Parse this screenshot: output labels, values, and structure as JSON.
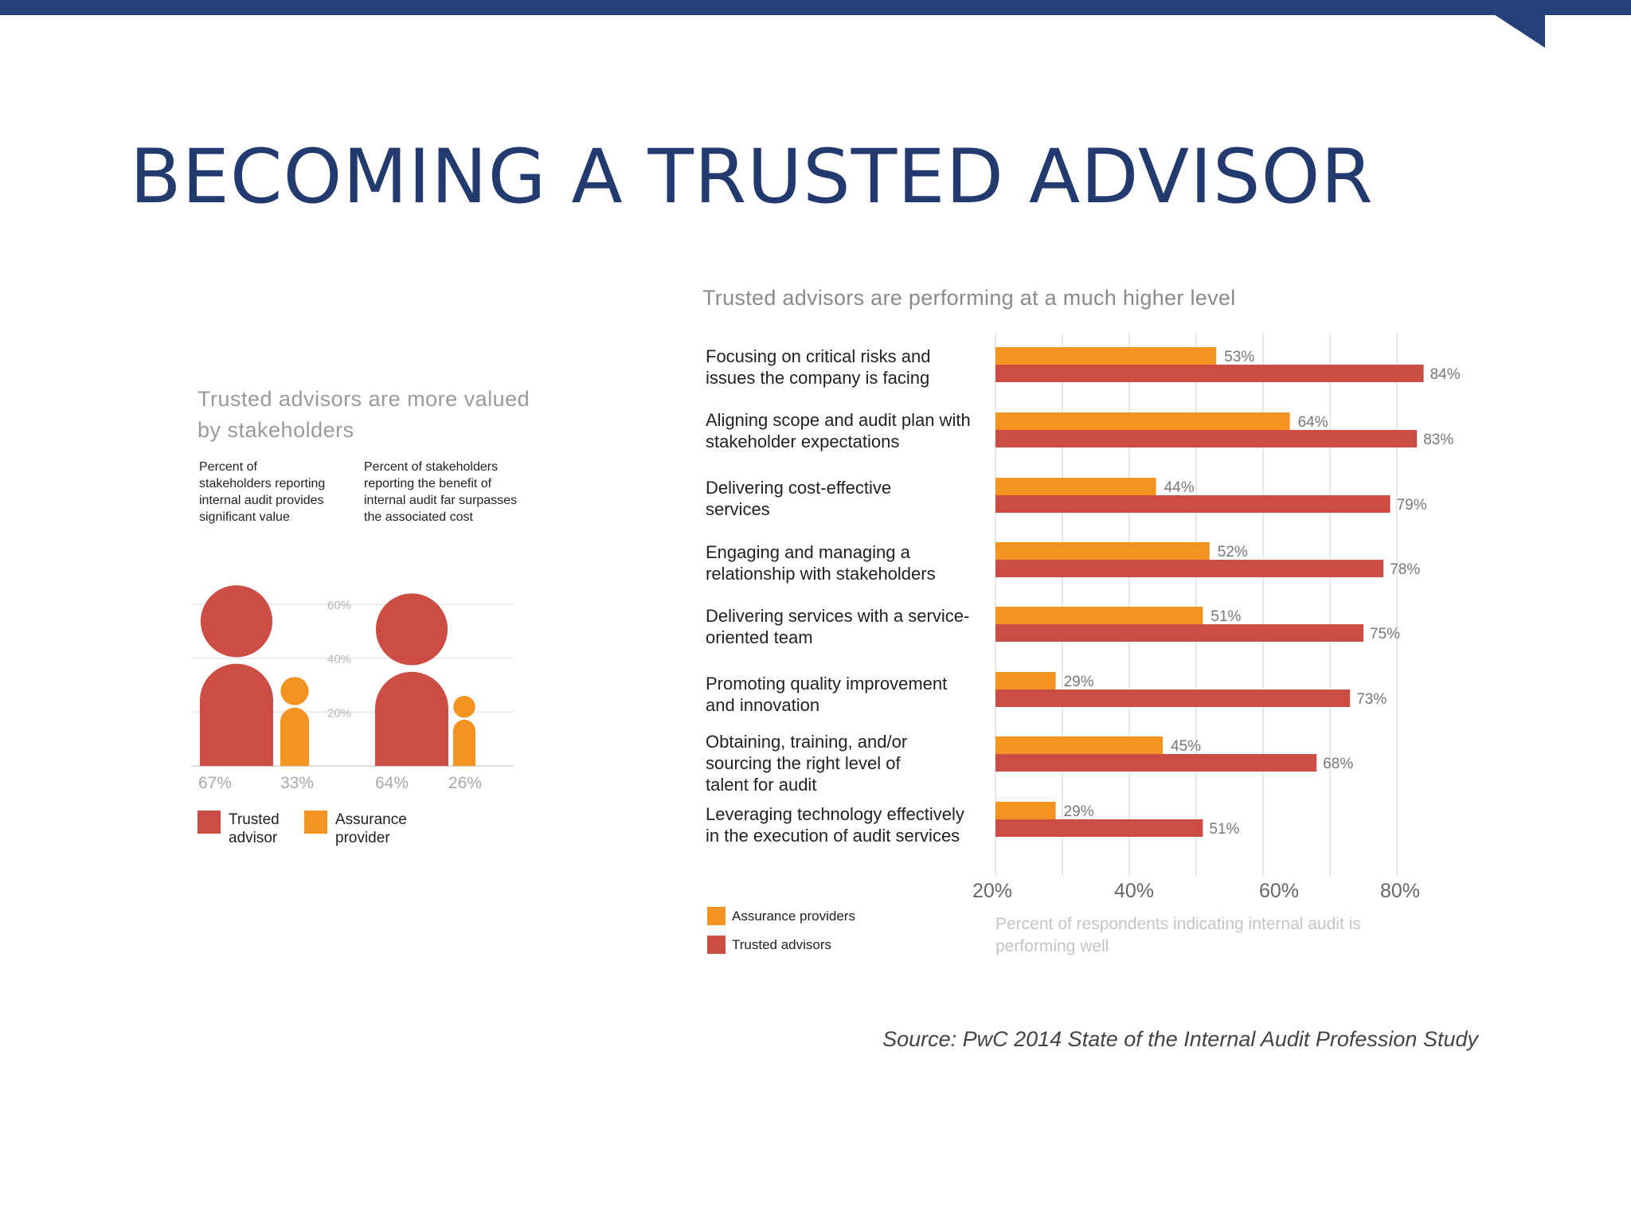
{
  "slide": {
    "title": "BECOMING A TRUSTED ADVISOR",
    "source": "Source: PwC 2014 State of the Internal Audit Profession Study"
  },
  "colors": {
    "header_bar": "#243f7a",
    "title": "#223a6e",
    "trusted": "#cc4d43",
    "assurance": "#f39321"
  },
  "chart_data": [
    {
      "type": "bar",
      "title": "Trusted advisors are more valued by stakeholders",
      "columns": [
        "Percent of stakeholders reporting internal audit provides significant value",
        "Percent of stakeholders reporting the benefit of internal audit far surpasses the associated cost"
      ],
      "categories": [
        "Percent of stakeholders reporting internal audit provides significant value",
        "Percent of stakeholders reporting the benefit of internal audit far surpasses the associated cost"
      ],
      "series": [
        {
          "name": "Trusted advisor",
          "values": [
            67,
            64
          ],
          "labels": [
            "67%",
            "64%"
          ],
          "color": "#cc4d43"
        },
        {
          "name": "Assurance provider",
          "values": [
            33,
            26
          ],
          "labels": [
            "33%",
            "26%"
          ],
          "color": "#f39321"
        }
      ],
      "ticks": [
        "60%",
        "40%",
        "20%"
      ],
      "ylim": [
        0,
        70
      ],
      "legend": [
        "Trusted advisor",
        "Assurance provider"
      ]
    },
    {
      "type": "bar",
      "orientation": "horizontal",
      "title": "Trusted advisors are performing at a much higher level",
      "categories": [
        "Focusing on critical risks and issues the company is facing",
        "Aligning scope and audit plan with stakeholder expectations",
        "Delivering cost-effective services",
        "Engaging and managing a relationship with stakeholders",
        "Delivering services with a service-oriented team",
        "Promoting quality improvement and innovation",
        "Obtaining, training, and/or sourcing the right level of talent for audit",
        "Leveraging technology effectively in the execution of audit services"
      ],
      "series": [
        {
          "name": "Assurance providers",
          "values": [
            53,
            64,
            44,
            52,
            51,
            29,
            45,
            29
          ],
          "labels": [
            "53%",
            "64%",
            "44%",
            "52%",
            "51%",
            "29%",
            "45%",
            "29%"
          ],
          "color": "#f39321"
        },
        {
          "name": "Trusted advisors",
          "values": [
            84,
            83,
            79,
            78,
            75,
            73,
            68,
            51
          ],
          "labels": [
            "84%",
            "83%",
            "79%",
            "78%",
            "75%",
            "73%",
            "68%",
            "51%"
          ],
          "color": "#cc4d43"
        }
      ],
      "xticks": [
        "20%",
        "40%",
        "60%",
        "80%"
      ],
      "xlim": [
        20,
        84
      ],
      "xlabel": "Percent of respondents indicating internal audit is performing well",
      "legend": [
        "Assurance providers",
        "Trusted advisors"
      ],
      "grid": true
    }
  ]
}
